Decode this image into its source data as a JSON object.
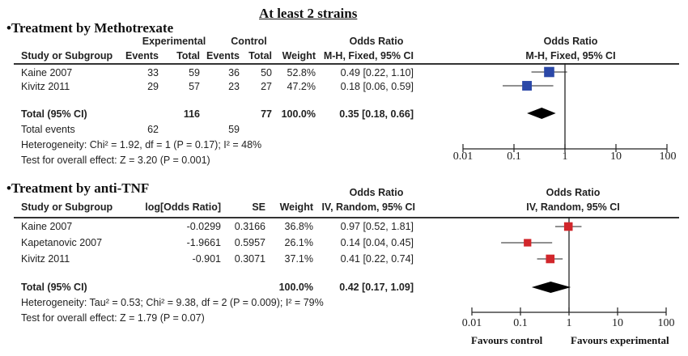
{
  "title": "At least 2 strains",
  "colors": {
    "methotrexate_marker": "#2b48a8",
    "anti_tnf_marker": "#d1262b",
    "summary": "#000000"
  },
  "chart_data": [
    {
      "type": "forest",
      "section_title": "•Treatment by Methotrexate",
      "headers": {
        "experimental": "Experimental",
        "control": "Control",
        "study": "Study or Subgroup",
        "events": "Events",
        "total": "Total",
        "events2": "Events",
        "total2": "Total",
        "weight": "Weight",
        "or_title": "Odds Ratio",
        "or_method": "M-H, Fixed, 95% CI",
        "plot_title": "Odds Ratio",
        "plot_method": "M-H, Fixed, 95% CI"
      },
      "studies": [
        {
          "name": "Kaine 2007",
          "exp_events": "33",
          "exp_total": "59",
          "ctrl_events": "36",
          "ctrl_total": "50",
          "weight": "52.8%",
          "ci_text": "0.49 [0.22, 1.10]",
          "or": 0.49,
          "lo": 0.22,
          "hi": 1.1,
          "w": 52.8
        },
        {
          "name": "Kivitz 2011",
          "exp_events": "29",
          "exp_total": "57",
          "ctrl_events": "23",
          "ctrl_total": "27",
          "weight": "47.2%",
          "ci_text": "0.18 [0.06, 0.59]",
          "or": 0.18,
          "lo": 0.06,
          "hi": 0.59,
          "w": 47.2
        }
      ],
      "total": {
        "label": "Total (95% CI)",
        "exp_total": "116",
        "ctrl_total": "77",
        "weight": "100.0%",
        "ci_text": "0.35 [0.18, 0.66]",
        "or": 0.35,
        "lo": 0.18,
        "hi": 0.66
      },
      "total_events": {
        "label": "Total events",
        "exp": "62",
        "ctrl": "59"
      },
      "heterogeneity": "Heterogeneity: Chi² = 1.92, df = 1 (P = 0.17); I² = 48%",
      "overall_effect": "Test for overall effect: Z = 3.20 (P = 0.001)",
      "axis": {
        "scale": "log",
        "range": [
          0.01,
          100
        ],
        "ticks": [
          "0.01",
          "0.1",
          "1",
          "10",
          "100"
        ]
      }
    },
    {
      "type": "forest",
      "section_title": "•Treatment by anti-TNF",
      "headers": {
        "study": "Study or Subgroup",
        "log_or": "log[Odds Ratio]",
        "se": "SE",
        "weight": "Weight",
        "or_title": "Odds Ratio",
        "or_method": "IV, Random, 95% CI",
        "plot_title": "Odds Ratio",
        "plot_method": "IV, Random, 95% CI"
      },
      "studies": [
        {
          "name": "Kaine 2007",
          "log_or": "-0.0299",
          "se": "0.3166",
          "weight": "36.8%",
          "ci_text": "0.97 [0.52, 1.81]",
          "or": 0.97,
          "lo": 0.52,
          "hi": 1.81,
          "w": 36.8
        },
        {
          "name": "Kapetanovic 2007",
          "log_or": "-1.9661",
          "se": "0.5957",
          "weight": "26.1%",
          "ci_text": "0.14 [0.04, 0.45]",
          "or": 0.14,
          "lo": 0.04,
          "hi": 0.45,
          "w": 26.1
        },
        {
          "name": "Kivitz 2011",
          "log_or": "-0.901",
          "se": "0.3071",
          "weight": "37.1%",
          "ci_text": "0.41 [0.22, 0.74]",
          "or": 0.41,
          "lo": 0.22,
          "hi": 0.74,
          "w": 37.1
        }
      ],
      "total": {
        "label": "Total (95% CI)",
        "weight": "100.0%",
        "ci_text": "0.42 [0.17, 1.09]",
        "or": 0.42,
        "lo": 0.17,
        "hi": 1.09
      },
      "heterogeneity": "Heterogeneity: Tau² = 0.53; Chi² = 9.38, df = 2 (P = 0.009); I² = 79%",
      "overall_effect": "Test for overall effect: Z = 1.79 (P = 0.07)",
      "axis": {
        "scale": "log",
        "range": [
          0.01,
          100
        ],
        "ticks": [
          "0.01",
          "0.1",
          "1",
          "10",
          "100"
        ]
      },
      "favours_left": "Favours control",
      "favours_right": "Favours experimental"
    }
  ]
}
